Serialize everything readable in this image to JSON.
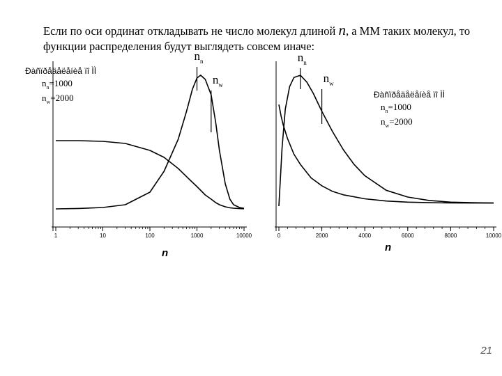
{
  "caption": {
    "part1": "Если по оси ординат откладывать не число молекул длиной ",
    "n_symbol": "n",
    "part2": ", а ММ таких молекул, то функции распределения будут выглядеть совсем иначе:"
  },
  "slide_number": "21",
  "chart_data": [
    {
      "type": "line",
      "xscale": "log",
      "xlim": [
        1,
        10000
      ],
      "xticks": [
        "1",
        "10",
        "100",
        "1000",
        "10000"
      ],
      "xlabel": "n",
      "legend": {
        "title": "Ðàñïðåäåëåíèå ïî ÌÌ",
        "lines": [
          "nn=1000",
          "nw=2000"
        ],
        "position": "top-left"
      },
      "markers": [
        {
          "label": "n",
          "sub": "n",
          "x": 1000
        },
        {
          "label": "n",
          "sub": "w",
          "x": 2000
        }
      ],
      "series": [
        {
          "x": [
            1,
            3,
            10,
            30,
            100,
            200,
            400,
            700,
            1000,
            1500,
            2000,
            2500,
            3000,
            4000,
            5000,
            6000,
            8000,
            10000
          ],
          "y": [
            0.49,
            0.49,
            0.485,
            0.47,
            0.42,
            0.37,
            0.29,
            0.21,
            0.16,
            0.1,
            0.07,
            0.045,
            0.03,
            0.015,
            0.008,
            0.005,
            0.002,
            0.001
          ]
        },
        {
          "x": [
            1,
            3,
            10,
            30,
            100,
            200,
            400,
            600,
            800,
            1000,
            1200,
            1500,
            2000,
            2500,
            3000,
            4000,
            5000,
            6000,
            8000,
            10000
          ],
          "y": [
            0.0,
            0.003,
            0.01,
            0.03,
            0.12,
            0.27,
            0.5,
            0.7,
            0.86,
            0.94,
            0.96,
            0.93,
            0.82,
            0.62,
            0.42,
            0.18,
            0.07,
            0.03,
            0.01,
            0.004
          ]
        }
      ]
    },
    {
      "type": "line",
      "xlim": [
        0,
        10000
      ],
      "xticks": [
        "0",
        "2000",
        "4000",
        "6000",
        "8000",
        "10000"
      ],
      "xlabel": "n",
      "legend": {
        "title": "Ðàñïðåäåëåíèå ïî ÌÌ",
        "lines": [
          "nn=1000",
          "nw=2000"
        ],
        "position": "top-right"
      },
      "markers": [
        {
          "label": "n",
          "sub": "n",
          "x": 1000
        },
        {
          "label": "n",
          "sub": "w",
          "x": 2000
        }
      ],
      "series": [
        {
          "x": [
            0,
            100,
            200,
            400,
            700,
            1000,
            1500,
            2000,
            2500,
            3000,
            4000,
            5000,
            6000,
            7000,
            8000,
            9000,
            10000
          ],
          "y": [
            0.9,
            0.8,
            0.72,
            0.6,
            0.46,
            0.37,
            0.25,
            0.18,
            0.13,
            0.1,
            0.065,
            0.045,
            0.035,
            0.03,
            0.028,
            0.027,
            0.027
          ]
        },
        {
          "x": [
            0,
            150,
            300,
            500,
            700,
            1000,
            1300,
            1600,
            2000,
            2500,
            3000,
            3500,
            4000,
            5000,
            6000,
            7000,
            8000,
            9000,
            10000
          ],
          "y": [
            0.0,
            0.52,
            0.86,
            1.06,
            1.14,
            1.16,
            1.1,
            1.0,
            0.84,
            0.66,
            0.5,
            0.37,
            0.27,
            0.14,
            0.08,
            0.05,
            0.035,
            0.03,
            0.028
          ]
        }
      ]
    }
  ]
}
